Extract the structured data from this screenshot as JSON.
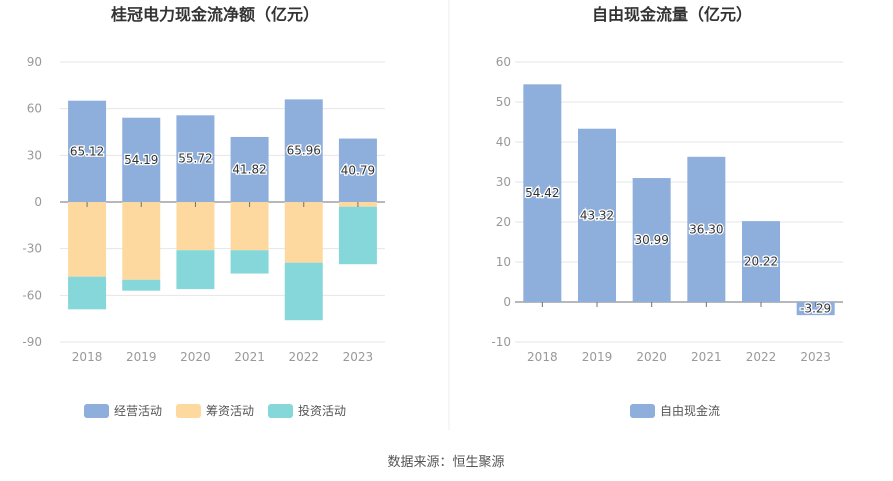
{
  "source": "数据来源：恒生聚源",
  "chart_data": [
    {
      "type": "bar",
      "stacked": true,
      "title": "桂冠电力现金流净额（亿元）",
      "categories": [
        "2018",
        "2019",
        "2020",
        "2021",
        "2022",
        "2023"
      ],
      "ylim": [
        -90,
        90
      ],
      "yticks": [
        90,
        60,
        30,
        0,
        -30,
        -60,
        -90
      ],
      "grid": true,
      "legend_position": "bottom",
      "series": [
        {
          "name": "经营活动",
          "color": "#8eaedb",
          "values": [
            65.12,
            54.19,
            55.72,
            41.82,
            65.96,
            40.79
          ],
          "labels": [
            "65.12",
            "54.19",
            "55.72",
            "41.82",
            "65.96",
            "40.79"
          ]
        },
        {
          "name": "筹资活动",
          "color": "#fdd9a0",
          "values": [
            -48,
            -50,
            -31,
            -31,
            -39,
            -3
          ]
        },
        {
          "name": "投资活动",
          "color": "#85d7da",
          "values": [
            -21,
            -7,
            -25,
            -15,
            -37,
            -37
          ]
        }
      ]
    },
    {
      "type": "bar",
      "title": "自由现金流量（亿元）",
      "categories": [
        "2018",
        "2019",
        "2020",
        "2021",
        "2022",
        "2023"
      ],
      "ylim": [
        -10,
        60
      ],
      "yticks": [
        60,
        50,
        40,
        30,
        20,
        10,
        0,
        -10
      ],
      "grid": true,
      "legend_position": "bottom",
      "series": [
        {
          "name": "自由现金流",
          "color": "#8eaedb",
          "values": [
            54.42,
            43.32,
            30.99,
            36.3,
            20.22,
            -3.29
          ],
          "labels": [
            "54.42",
            "43.32",
            "30.99",
            "36.30",
            "20.22",
            "-3.29"
          ]
        }
      ]
    }
  ]
}
